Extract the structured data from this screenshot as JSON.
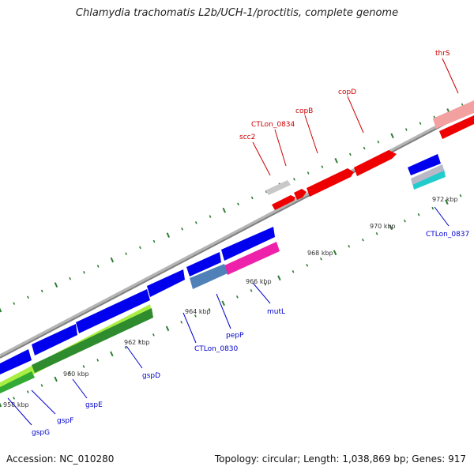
{
  "title": "Chlamydia trachomatis L2b/UCH-1/proctitis, complete genome",
  "footer": {
    "accession": "Accession: NC_010280",
    "summary": "Topology: circular; Length: 1,038,869 bp; Genes: 917"
  },
  "colors": {
    "backbone": "#888888",
    "forward_label": "#cc0000",
    "reverse_label": "#0000cc",
    "tick": "#2e7d32"
  },
  "ticks": [
    "958 kbp",
    "960 kbp",
    "962 kbp",
    "964 kbp",
    "966 kbp",
    "968 kbp",
    "970 kbp",
    "972 kbp"
  ],
  "forward_labels": [
    "scc2",
    "CTLon_0834",
    "copB",
    "copD",
    "thrS"
  ],
  "reverse_labels": [
    "gspG",
    "gspF",
    "gspE",
    "gspD",
    "CTLon_0830",
    "pepP",
    "mutL",
    "CTLon_0837"
  ]
}
